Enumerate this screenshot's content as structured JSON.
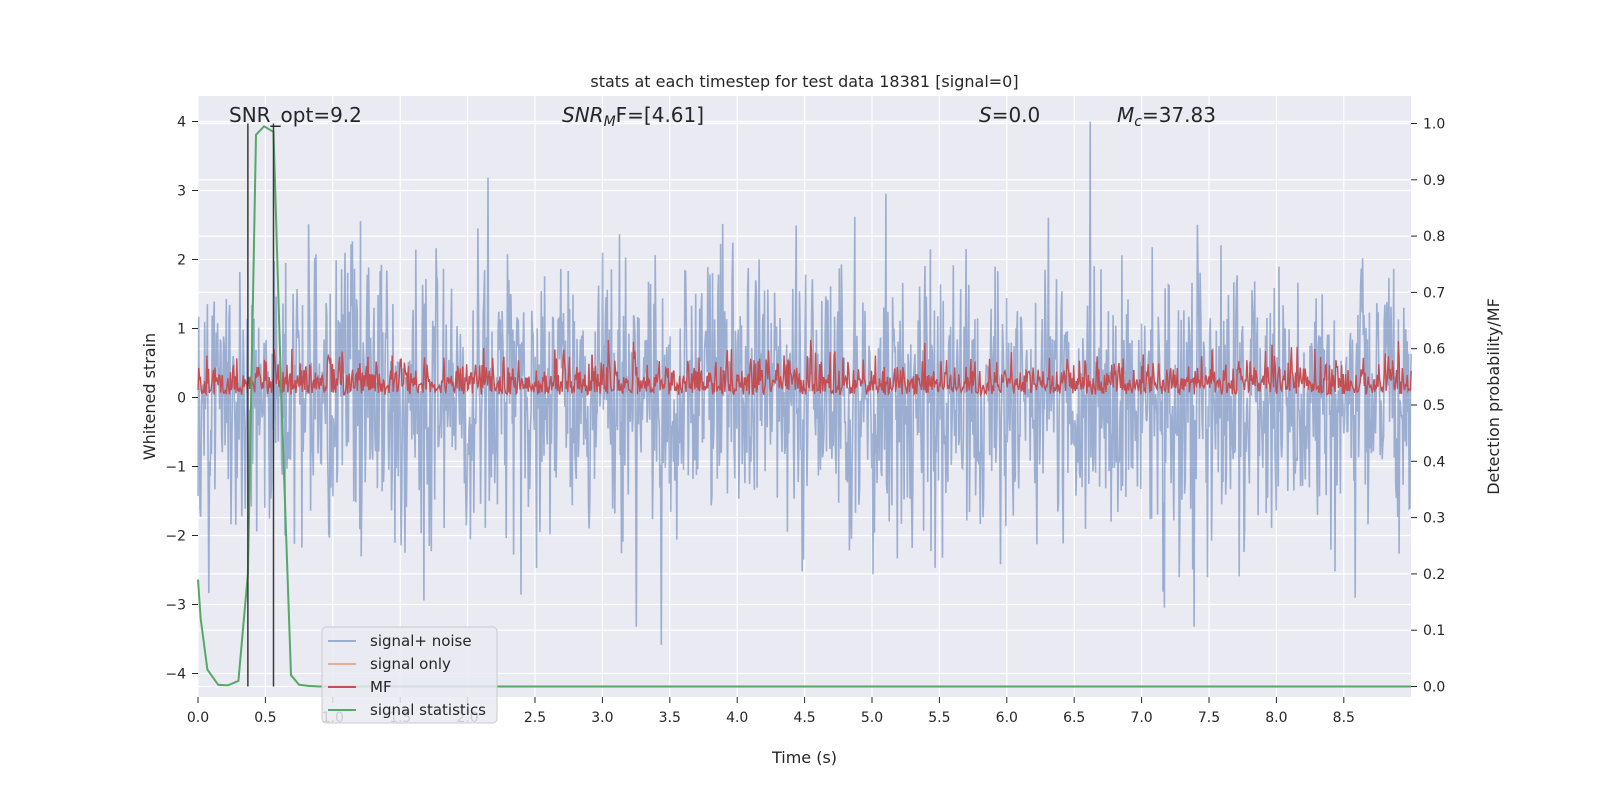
{
  "chart_data": {
    "type": "line",
    "title": "stats at each timestep for test data 18381 [signal=0]",
    "xlabel": "Time (s)",
    "ylabel_left": "Whitened strain",
    "ylabel_right": "Detection probability/MF",
    "xlim": [
      0.0,
      9.0
    ],
    "ylim_left": [
      -4.35,
      4.35
    ],
    "ylim_right": [
      -0.045,
      1.045
    ],
    "xticks": [
      "0.0",
      "0.5",
      "1.0",
      "1.5",
      "2.0",
      "2.5",
      "3.0",
      "3.5",
      "4.0",
      "4.5",
      "5.0",
      "5.5",
      "6.0",
      "6.5",
      "7.0",
      "7.5",
      "8.0",
      "8.5"
    ],
    "yticks_left": [
      "4",
      "3",
      "2",
      "1",
      "0",
      "−1",
      "−2",
      "−3",
      "−4"
    ],
    "yticks_right": [
      "1.0",
      "0.9",
      "0.8",
      "0.7",
      "0.6",
      "0.5",
      "0.4",
      "0.3",
      "0.2",
      "0.1",
      "0.0"
    ],
    "grid": true,
    "legend_position": "lower-left",
    "annotations": [
      {
        "text": "SNR_opt=9.2",
        "x": 0.2
      },
      {
        "text_parts": [
          "SNR",
          "M",
          "F=[4.61]"
        ],
        "x": 2.6
      },
      {
        "text_parts": [
          "S",
          "=0.0"
        ],
        "x": 5.6
      },
      {
        "text_parts": [
          "M",
          "c",
          "=37.83"
        ],
        "x": 6.6
      }
    ],
    "vlines": [
      0.37,
      0.56
    ],
    "series": [
      {
        "name": "signal+ noise",
        "color": "#4c72b0",
        "axis": "left",
        "envelope_std": 1.0,
        "note": "dense noise trace"
      },
      {
        "name": "signal only",
        "color": "#dd8452",
        "axis": "left",
        "values": []
      },
      {
        "name": "MF",
        "color": "#c44e52",
        "axis": "right",
        "baseline": 0.53,
        "noise": 0.025
      },
      {
        "name": "signal statistics",
        "color": "#55a868",
        "axis": "right",
        "x": [
          0.0,
          0.02,
          0.07,
          0.15,
          0.22,
          0.3,
          0.37,
          0.43,
          0.49,
          0.56,
          0.62,
          0.69,
          0.75,
          0.82,
          0.9,
          9.0
        ],
        "y": [
          0.19,
          0.12,
          0.03,
          0.003,
          0.002,
          0.01,
          0.2,
          0.98,
          0.995,
          0.985,
          0.5,
          0.02,
          0.003,
          0.001,
          0.0,
          0.0
        ]
      }
    ],
    "colors": {
      "background": "#eaeaf2",
      "grid": "#ffffff",
      "vline": "#3a3a3a"
    }
  }
}
